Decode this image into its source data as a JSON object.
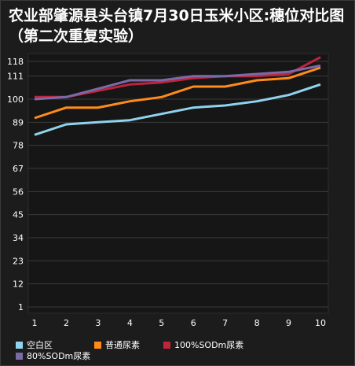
{
  "chart_data": {
    "type": "line",
    "title": "农业部肇源县头台镇7月30日玉米小区:穗位对比图（第二次重复实验）",
    "x": [
      1,
      2,
      3,
      4,
      5,
      6,
      7,
      8,
      9,
      10
    ],
    "x_tick_labels": [
      "1",
      "2",
      "3",
      "4",
      "5",
      "6",
      "7",
      "8",
      "9",
      "10"
    ],
    "y_tick_labels": [
      "1",
      "12",
      "23",
      "34",
      "45",
      "56",
      "67",
      "78",
      "89",
      "100",
      "111",
      "118"
    ],
    "y_ticks": [
      1,
      12,
      23,
      34,
      45,
      56,
      67,
      78,
      89,
      100,
      111,
      118
    ],
    "ylim": [
      1,
      118
    ],
    "grid": true,
    "legend_position": "bottom",
    "series": [
      {
        "name": "空白区",
        "color": "#8fd3ec",
        "values": [
          83,
          88,
          89,
          90,
          93,
          96,
          97,
          99,
          102,
          107
        ]
      },
      {
        "name": "普通尿素",
        "color": "#ff8c1a",
        "values": [
          91,
          96,
          96,
          99,
          101,
          106,
          106,
          109,
          110,
          115
        ]
      },
      {
        "name": "100%SODm尿素",
        "color": "#c0243c",
        "values": [
          101,
          101,
          104,
          107,
          108,
          110,
          111,
          111,
          112,
          120
        ]
      },
      {
        "name": "80%SODm尿素",
        "color": "#7a6aa8",
        "values": [
          100,
          101,
          105,
          109,
          109,
          111,
          111,
          112,
          113,
          116
        ]
      }
    ]
  }
}
